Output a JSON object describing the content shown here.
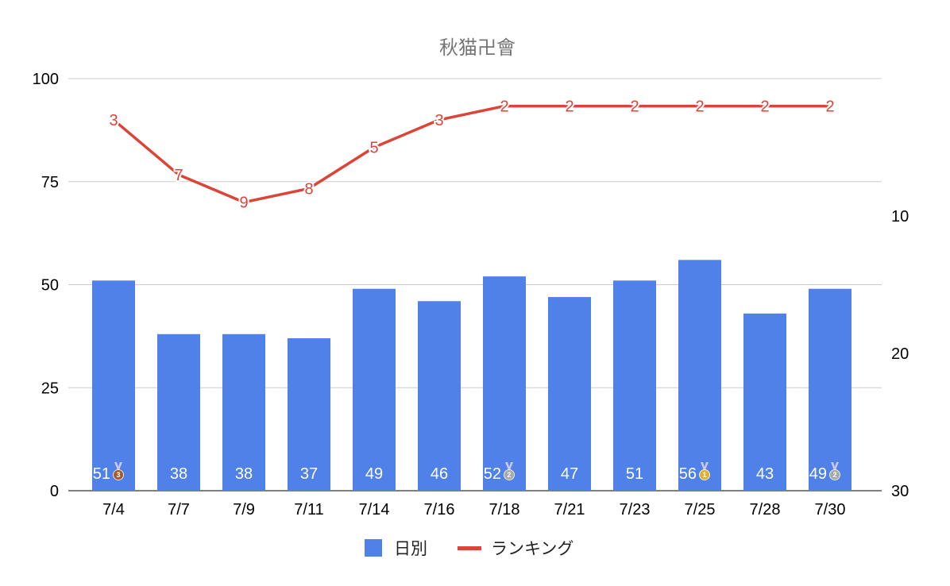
{
  "chart_data": {
    "type": "bar",
    "title": "秋猫卍會",
    "categories": [
      "7/4",
      "7/7",
      "7/9",
      "7/11",
      "7/14",
      "7/16",
      "7/18",
      "7/21",
      "7/23",
      "7/25",
      "7/28",
      "7/30"
    ],
    "series": [
      {
        "name": "日別",
        "type": "bar",
        "axis": "left",
        "color": "#4f81e8",
        "values": [
          51,
          38,
          38,
          37,
          49,
          46,
          52,
          47,
          51,
          56,
          43,
          49
        ],
        "labels": [
          "51",
          "38",
          "38",
          "37",
          "49",
          "46",
          "52",
          "47",
          "51",
          "56",
          "43",
          "49"
        ],
        "medals": [
          3,
          null,
          null,
          null,
          null,
          null,
          2,
          null,
          null,
          1,
          null,
          2
        ]
      },
      {
        "name": "ランキング",
        "type": "line",
        "axis": "right",
        "color": "#db4437",
        "values": [
          3,
          7,
          9,
          8,
          5,
          3,
          2,
          2,
          2,
          2,
          2,
          2
        ],
        "labels": [
          "3",
          "7",
          "9",
          "8",
          "5",
          "3",
          "2",
          "2",
          "2",
          "2",
          "2",
          "2"
        ]
      }
    ],
    "y_left": {
      "min": 0,
      "max": 100,
      "ticks": [
        "0",
        "25",
        "50",
        "75",
        "100"
      ],
      "tick_values": [
        0,
        25,
        50,
        75,
        100
      ]
    },
    "y_right": {
      "reversed": true,
      "min": 0,
      "max": 30,
      "ticks": [
        "10",
        "20",
        "30"
      ],
      "tick_values": [
        10,
        20,
        30
      ]
    },
    "grid": true,
    "legend_position": "bottom",
    "medal_colors": {
      "1": "#e0b12c",
      "2": "#a9a9a9",
      "3": "#a65b2a",
      "ribbon": "#c9c9f0"
    }
  }
}
